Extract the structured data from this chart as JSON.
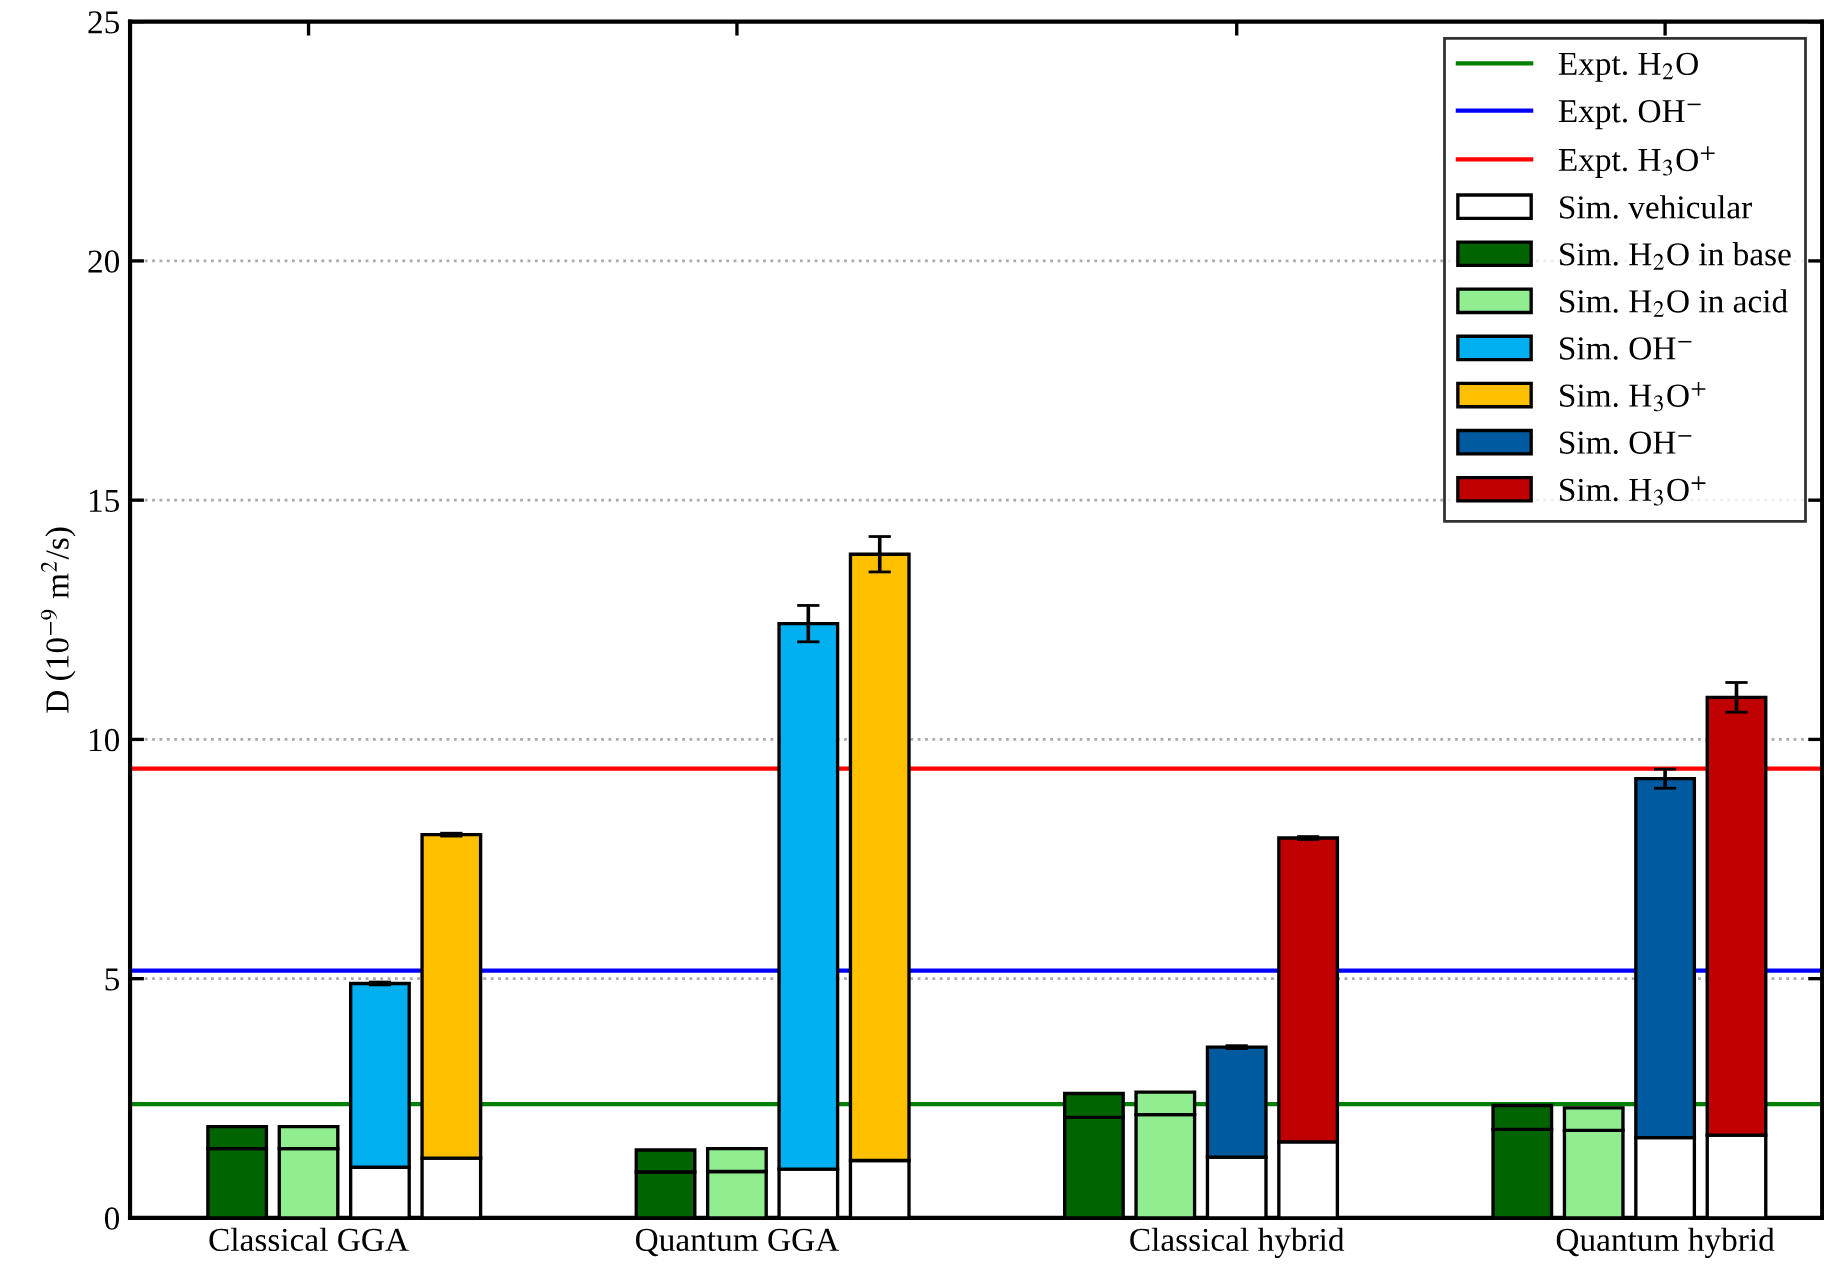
{
  "chart_data": {
    "type": "bar",
    "stacked": true,
    "ylabel": "D (10$^{−9}$ m$^{2}$/s)",
    "categories": [
      null,
      "Classical GGA",
      null,
      null,
      null,
      null,
      null,
      "Quantum GGA",
      null,
      null,
      null,
      null,
      null,
      null,
      "Classical hybrid",
      null,
      null,
      null,
      null,
      null,
      "Quantum hybrid",
      null
    ],
    "ylim": [
      0,
      25
    ],
    "yticks": [
      0,
      5,
      10,
      15,
      20,
      25
    ],
    "grid": "y",
    "legend": "top right",
    "ref_lines": [
      {
        "axis": "y",
        "value": 2.38,
        "label": "Expt. H$_{2}$O",
        "color": "#008000"
      },
      {
        "axis": "y",
        "value": 5.17,
        "label": "Expt. OH$^{−}$",
        "color": "#0000ff"
      },
      {
        "axis": "y",
        "value": 9.39,
        "label": "Expt. H$_{3}$O$^{+}$",
        "color": "#ff0000"
      }
    ],
    "series": [
      {
        "color": "#006400",
        "values": [
          1.45,
          null,
          null,
          null,
          null,
          null,
          0.96,
          null,
          null,
          null,
          null,
          null,
          2.1,
          null,
          null,
          null,
          null,
          null,
          1.85,
          null,
          null,
          null
        ]
      },
      {
        "color": "#90ee90",
        "values": [
          null,
          1.45,
          null,
          null,
          null,
          null,
          null,
          0.97,
          null,
          null,
          null,
          null,
          null,
          2.16,
          null,
          null,
          null,
          null,
          null,
          1.83,
          null,
          null
        ]
      },
      {
        "name": "Sim. vehicular",
        "color": "#ffffff",
        "values": [
          null,
          null,
          1.06,
          1.25,
          null,
          null,
          null,
          null,
          1.02,
          1.2,
          null,
          null,
          null,
          null,
          1.27,
          1.59,
          null,
          null,
          null,
          null,
          1.68,
          1.73
        ]
      },
      {
        "name": "Sim. H$_{2}$O in base",
        "color": "#006400",
        "values": [
          0.46,
          null,
          null,
          null,
          null,
          null,
          0.46,
          null,
          null,
          null,
          null,
          null,
          0.5,
          null,
          null,
          null,
          null,
          null,
          0.5,
          null,
          null,
          null
        ]
      },
      {
        "name": "Sim. H$_{2}$O in acid",
        "color": "#90ee90",
        "values": [
          null,
          0.46,
          null,
          null,
          null,
          null,
          null,
          0.48,
          null,
          null,
          null,
          null,
          null,
          0.47,
          null,
          null,
          null,
          null,
          null,
          0.47,
          null,
          null
        ]
      },
      {
        "name": "Sim. OH$^{−}$",
        "color": "#00b0f0",
        "values": [
          null,
          null,
          3.84,
          null,
          null,
          null,
          null,
          null,
          11.4,
          null,
          null,
          null,
          null,
          null,
          null,
          null,
          null,
          null,
          null,
          null,
          null,
          null
        ],
        "errors": [
          null,
          null,
          0.03,
          null,
          null,
          null,
          null,
          null,
          0.38,
          null,
          null,
          null,
          null,
          null,
          null,
          null,
          null,
          null,
          null,
          null,
          null,
          null
        ]
      },
      {
        "name": "Sim. H$_{3}$O$^{+}$",
        "color": "#ffc000",
        "values": [
          null,
          null,
          null,
          6.76,
          null,
          null,
          null,
          null,
          null,
          12.67,
          null,
          null,
          null,
          null,
          null,
          null,
          null,
          null,
          null,
          null,
          null,
          null
        ],
        "errors": [
          null,
          null,
          null,
          0.03,
          null,
          null,
          null,
          null,
          null,
          0.37,
          null,
          null,
          null,
          null,
          null,
          null,
          null,
          null,
          null,
          null,
          null,
          null
        ]
      },
      {
        "name": "Sim. OH$^{−}$",
        "color": "#005aa0",
        "values": [
          null,
          null,
          null,
          null,
          null,
          null,
          null,
          null,
          null,
          null,
          null,
          null,
          null,
          null,
          2.3,
          null,
          null,
          null,
          null,
          null,
          7.5,
          null
        ],
        "errors": [
          null,
          null,
          null,
          null,
          null,
          null,
          null,
          null,
          null,
          null,
          null,
          null,
          null,
          null,
          0.03,
          null,
          null,
          null,
          null,
          null,
          0.2,
          null
        ]
      },
      {
        "name": "Sim. H$_{3}$O$^{+}$",
        "color": "#c00000",
        "values": [
          null,
          null,
          null,
          null,
          null,
          null,
          null,
          null,
          null,
          null,
          null,
          null,
          null,
          null,
          null,
          6.35,
          null,
          null,
          null,
          null,
          null,
          9.15
        ],
        "errors": [
          null,
          null,
          null,
          null,
          null,
          null,
          null,
          null,
          null,
          null,
          null,
          null,
          null,
          null,
          null,
          0.03,
          null,
          null,
          null,
          null,
          null,
          0.31
        ]
      }
    ]
  }
}
